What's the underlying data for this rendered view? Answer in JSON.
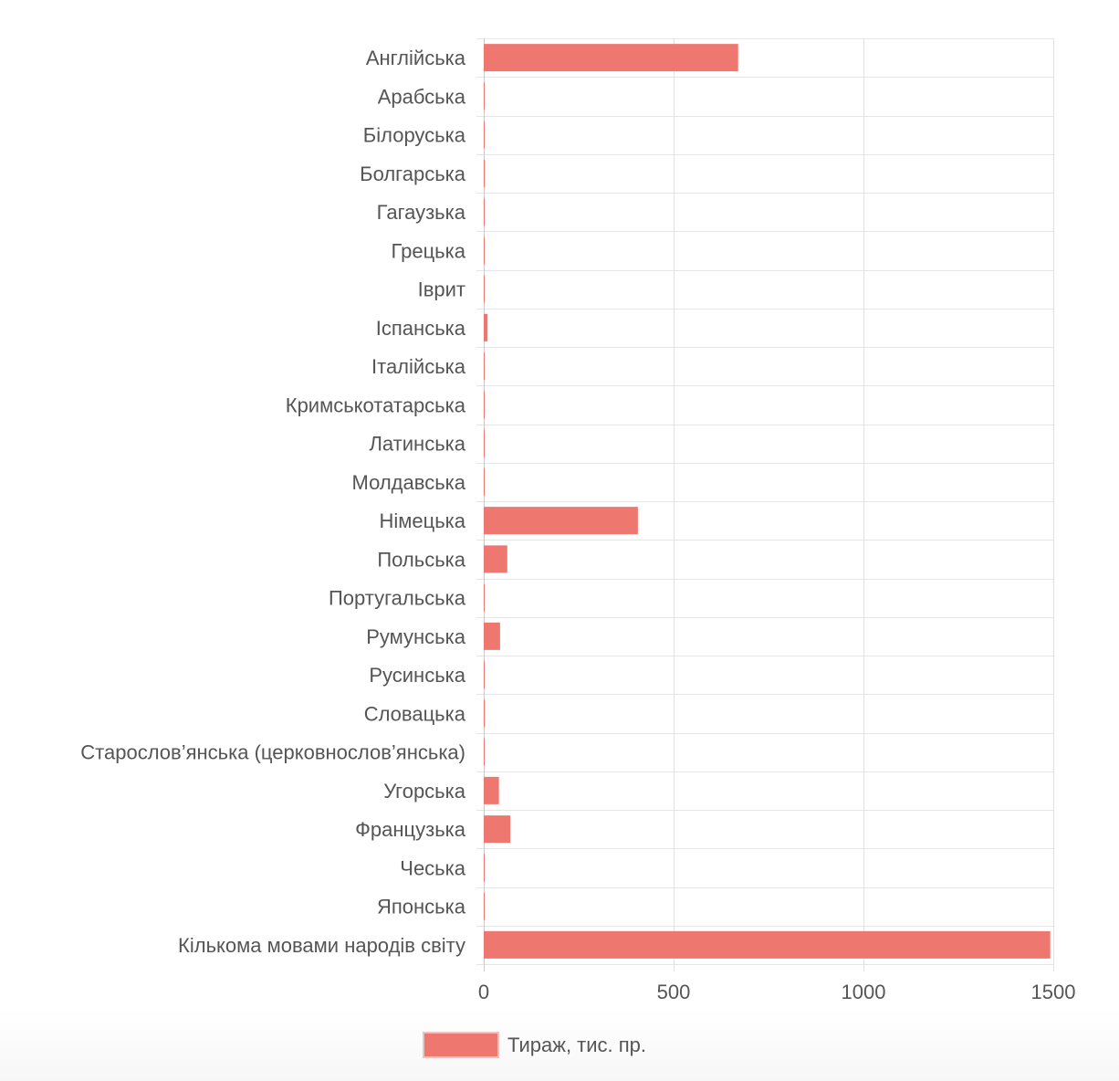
{
  "chart_data": {
    "type": "bar",
    "orientation": "horizontal",
    "categories": [
      "Англійська",
      "Арабська",
      "Білоруська",
      "Болгарська",
      "Гагаузька",
      "Грецька",
      "Іврит",
      "Іспанська",
      "Італійська",
      "Кримськотатарська",
      "Латинська",
      "Молдавська",
      "Німецька",
      "Польська",
      "Португальська",
      "Румунська",
      "Русинська",
      "Словацька",
      "Старослов’янська (церковнослов’янська)",
      "Угорська",
      "Французька",
      "Чеська",
      "Японська",
      "Кількома мовами народів світу"
    ],
    "series": [
      {
        "name": "Тираж, тис. пр.",
        "color": "#ee7770",
        "values": [
          670,
          2,
          0.5,
          3,
          0.3,
          0.5,
          1,
          10,
          2,
          2,
          0.5,
          2,
          406,
          62,
          0.5,
          43,
          0.5,
          3,
          2,
          40,
          70,
          2,
          0.5,
          1492
        ]
      }
    ],
    "xlim": [
      0,
      1500
    ],
    "x_ticks": [
      0,
      500,
      1000,
      1500
    ],
    "grid": true,
    "legend": "bottom"
  }
}
